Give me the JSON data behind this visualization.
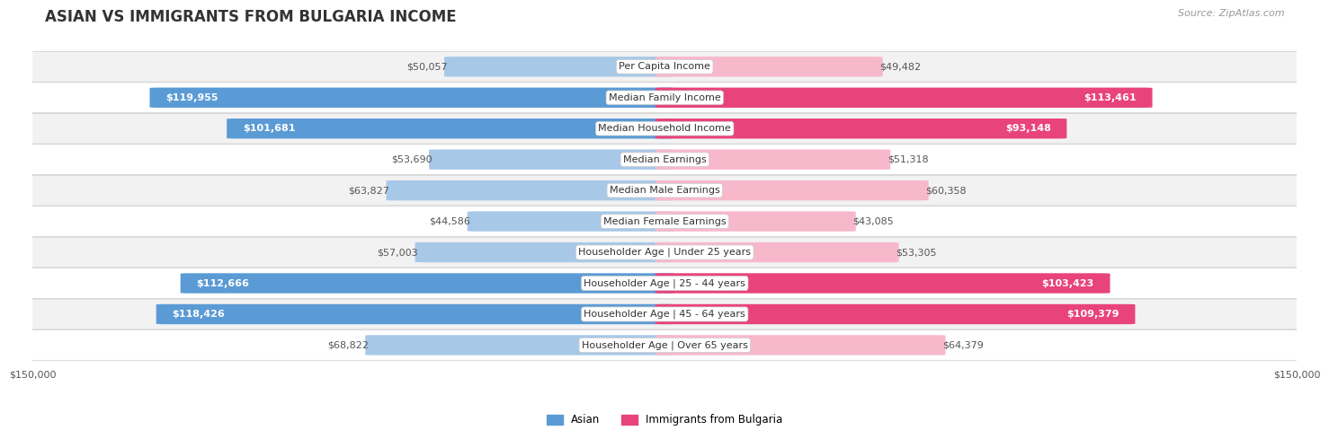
{
  "title": "ASIAN VS IMMIGRANTS FROM BULGARIA INCOME",
  "source": "Source: ZipAtlas.com",
  "categories": [
    "Per Capita Income",
    "Median Family Income",
    "Median Household Income",
    "Median Earnings",
    "Median Male Earnings",
    "Median Female Earnings",
    "Householder Age | Under 25 years",
    "Householder Age | 25 - 44 years",
    "Householder Age | 45 - 64 years",
    "Householder Age | Over 65 years"
  ],
  "asian_values": [
    50057,
    119955,
    101681,
    53690,
    63827,
    44586,
    57003,
    112666,
    118426,
    68822
  ],
  "bulgaria_values": [
    49482,
    113461,
    93148,
    51318,
    60358,
    43085,
    53305,
    103423,
    109379,
    64379
  ],
  "asian_labels": [
    "$50,057",
    "$119,955",
    "$101,681",
    "$53,690",
    "$63,827",
    "$44,586",
    "$57,003",
    "$112,666",
    "$118,426",
    "$68,822"
  ],
  "bulgaria_labels": [
    "$49,482",
    "$113,461",
    "$93,148",
    "$51,318",
    "$60,358",
    "$43,085",
    "$53,305",
    "$103,423",
    "$109,379",
    "$64,379"
  ],
  "asian_color_light": "#a8c8e8",
  "asian_color_dark": "#5b9bd5",
  "bulgaria_color_light": "#f8b8cc",
  "bulgaria_color_dark": "#e8437a",
  "inside_label_threshold": 75000,
  "max_val": 150000,
  "x_label_left": "$150,000",
  "x_label_right": "$150,000",
  "bar_height": 0.62,
  "row_bg_odd": "#f2f2f2",
  "row_bg_even": "#ffffff",
  "title_fontsize": 12,
  "label_fontsize": 8,
  "category_fontsize": 8,
  "source_fontsize": 8
}
